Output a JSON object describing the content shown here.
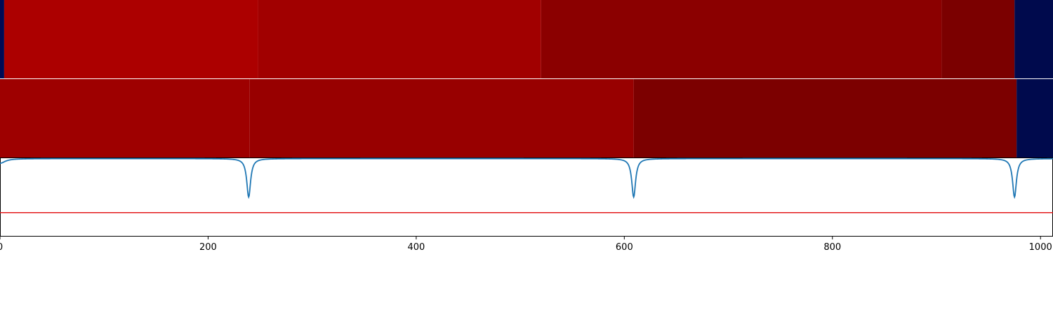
{
  "chart_data": {
    "type": "heatmap",
    "xlim": [
      0,
      1012
    ],
    "x_ticks": [
      "0",
      "200",
      "400",
      "600",
      "800",
      "1000"
    ],
    "x_tick_values": [
      0,
      200,
      400,
      600,
      800,
      1000
    ],
    "grid": false,
    "heatmap_rows": [
      {
        "segments": [
          {
            "x0": 0,
            "x1": 4,
            "color": "#000b55"
          },
          {
            "x0": 4,
            "x1": 248,
            "color": "#ac0000"
          },
          {
            "x0": 248,
            "x1": 520,
            "color": "#a10000"
          },
          {
            "x0": 520,
            "x1": 905,
            "color": "#8b0000"
          },
          {
            "x0": 905,
            "x1": 975,
            "color": "#7b0000"
          },
          {
            "x0": 975,
            "x1": 1012,
            "color": "#000a4d"
          }
        ]
      },
      {
        "segments": [
          {
            "x0": 0,
            "x1": 240,
            "color": "#9e0000"
          },
          {
            "x0": 240,
            "x1": 609,
            "color": "#980000"
          },
          {
            "x0": 609,
            "x1": 977,
            "color": "#7c0000"
          },
          {
            "x0": 977,
            "x1": 1012,
            "color": "#000a4d"
          }
        ]
      }
    ],
    "line_series": {
      "color": "#1f77b4",
      "ylim": [
        -1,
        0
      ],
      "baseline": -0.01,
      "dips": [
        {
          "x": 0,
          "depth": 0.12,
          "width": 6
        },
        {
          "x": 239,
          "depth": 1.0,
          "width": 2.2
        },
        {
          "x": 609,
          "depth": 1.0,
          "width": 2.2
        },
        {
          "x": 975,
          "depth": 1.0,
          "width": 2.2
        }
      ]
    },
    "threshold": {
      "value": -1.4,
      "color": "#e31a1c"
    },
    "threshold_ylim": [
      -2,
      0
    ]
  }
}
